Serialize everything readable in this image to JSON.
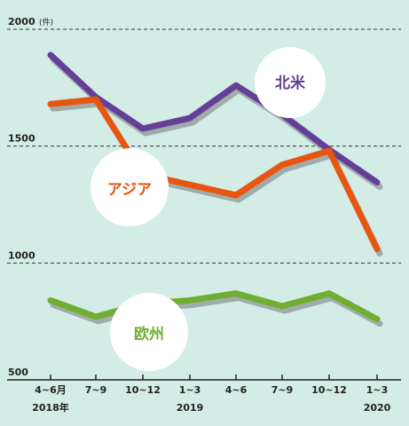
{
  "chart_data": {
    "type": "line",
    "unit": "(件)",
    "y_ticks": [
      "2000",
      "1500",
      "1000",
      "500"
    ],
    "ylim": [
      500,
      2000
    ],
    "grid": "dashed horizontal at 1000, 1500, 2000",
    "categories": [
      "4~6月",
      "7~9",
      "10~12",
      "1~3",
      "4~6",
      "7~9",
      "10~12",
      "1~3"
    ],
    "year_labels": [
      {
        "text": "2018年",
        "index": 0
      },
      {
        "text": "2019",
        "index": 3
      },
      {
        "text": "2020",
        "index": 7
      }
    ],
    "series": [
      {
        "name": "北米",
        "color": "#643f98",
        "values": [
          1890,
          1710,
          1575,
          1620,
          1760,
          1635,
          1485,
          1345
        ]
      },
      {
        "name": "アジア",
        "color": "#e75511",
        "values": [
          1680,
          1700,
          1380,
          1335,
          1290,
          1420,
          1480,
          1060
        ]
      },
      {
        "name": "欧州",
        "color": "#6fae32",
        "values": [
          840,
          770,
          825,
          840,
          870,
          815,
          870,
          760
        ]
      }
    ]
  }
}
